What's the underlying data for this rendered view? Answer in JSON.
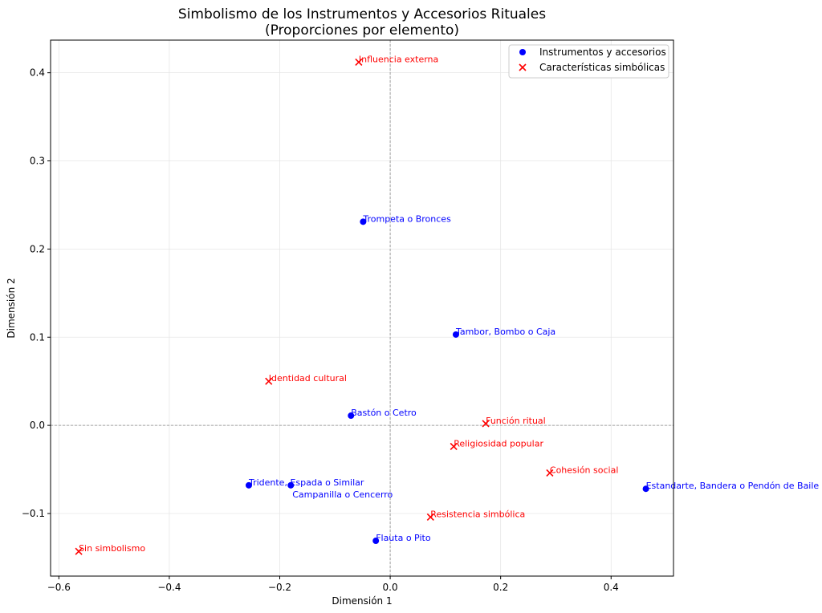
{
  "chart_data": {
    "type": "scatter",
    "title": "Simbolismo de los Instrumentos y Accesorios Rituales",
    "subtitle": "(Proporciones por elemento)",
    "xlabel": "Dimensión 1",
    "ylabel": "Dimensión 2",
    "xlim": [
      -0.615,
      0.513
    ],
    "ylim": [
      -0.171,
      0.437
    ],
    "xticks": [
      -0.6,
      -0.4,
      -0.2,
      0.0,
      0.2,
      0.4
    ],
    "xtick_labels": [
      "−0.6",
      "−0.4",
      "−0.2",
      "0.0",
      "0.2",
      "0.4"
    ],
    "yticks": [
      -0.1,
      0.0,
      0.1,
      0.2,
      0.3,
      0.4
    ],
    "ytick_labels": [
      "−0.1",
      "0.0",
      "0.1",
      "0.2",
      "0.3",
      "0.4"
    ],
    "grid": true,
    "legend_position": "top-right",
    "series": [
      {
        "name": "Instrumentos y accesorios",
        "marker": "circle",
        "color": "#0000ff",
        "points": [
          {
            "label": "Trompeta o Bronces",
            "x": -0.049,
            "y": 0.231
          },
          {
            "label": "Tambor, Bombo o Caja",
            "x": 0.119,
            "y": 0.103
          },
          {
            "label": "Bastón o Cetro",
            "x": -0.071,
            "y": 0.011
          },
          {
            "label": "Tridente, Espada o Similar",
            "x": -0.256,
            "y": -0.068
          },
          {
            "label": "Campanilla o Cencerro",
            "x": -0.18,
            "y": -0.068
          },
          {
            "label": "Flauta o Pito",
            "x": -0.026,
            "y": -0.131
          },
          {
            "label": "Estandarte, Bandera o Pendón de Baile",
            "x": 0.463,
            "y": -0.072
          }
        ]
      },
      {
        "name": "Características simbólicas",
        "marker": "x",
        "color": "#ff0000",
        "points": [
          {
            "label": "Influencia externa",
            "x": -0.057,
            "y": 0.412
          },
          {
            "label": "Identidad cultural",
            "x": -0.22,
            "y": 0.05
          },
          {
            "label": "Función ritual",
            "x": 0.173,
            "y": 0.002
          },
          {
            "label": "Religiosidad popular",
            "x": 0.115,
            "y": -0.024
          },
          {
            "label": "Cohesión social",
            "x": 0.289,
            "y": -0.054
          },
          {
            "label": "Resistencia simbólica",
            "x": 0.073,
            "y": -0.104
          },
          {
            "label": "Sin simbolismo",
            "x": -0.564,
            "y": -0.143
          }
        ]
      }
    ]
  }
}
